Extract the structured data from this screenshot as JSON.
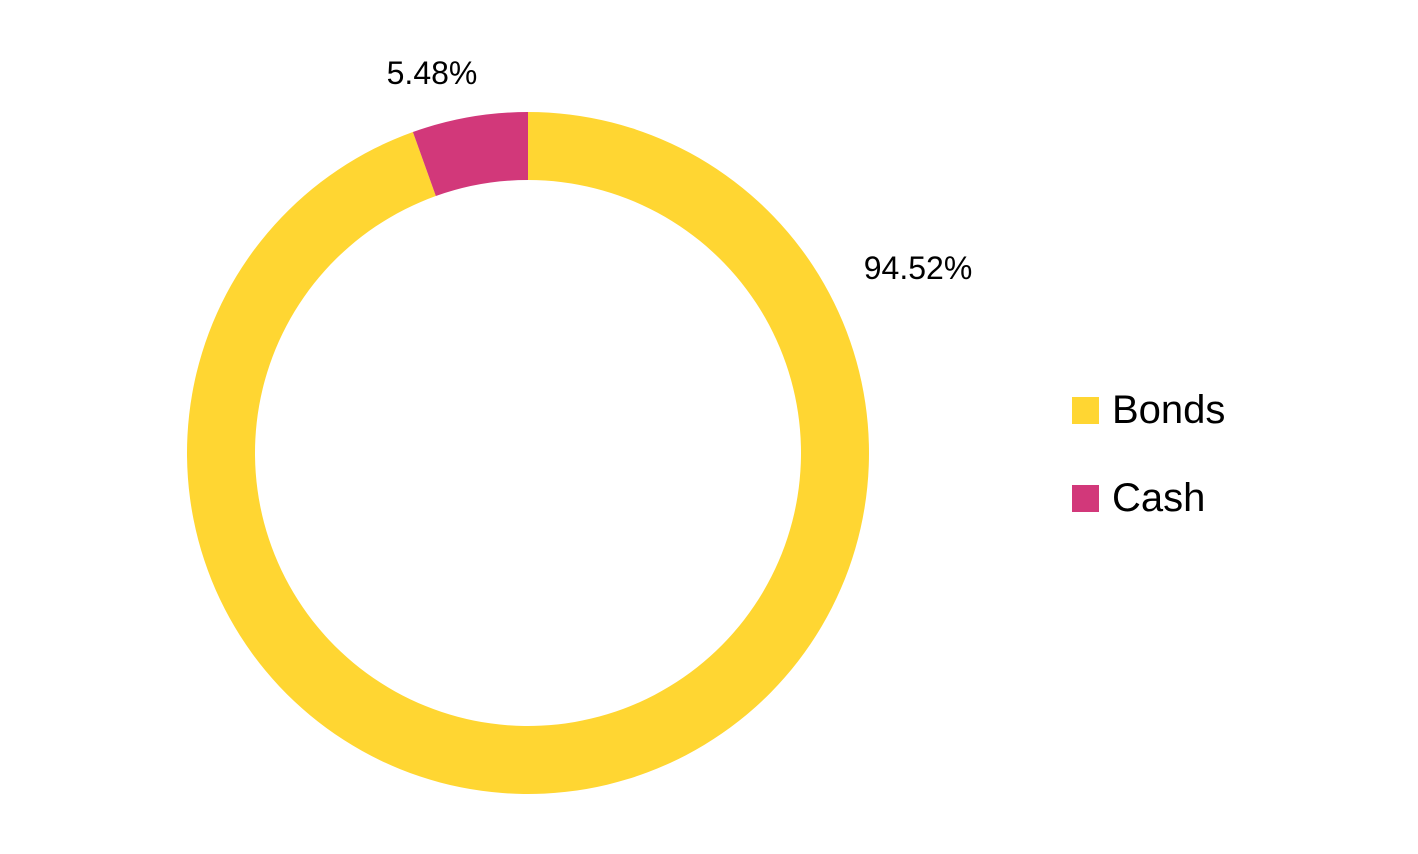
{
  "chart_data": {
    "type": "pie",
    "variant": "donut",
    "title": "",
    "series": [
      {
        "name": "Bonds",
        "value": 94.52,
        "label": "94.52%",
        "color": "#FFD632"
      },
      {
        "name": "Cash",
        "value": 5.48,
        "label": "5.48%",
        "color": "#D2387A"
      }
    ],
    "start_angle": "12 o'clock",
    "direction": "clockwise",
    "legend": {
      "position": "right",
      "items": [
        "Bonds",
        "Cash"
      ]
    }
  }
}
